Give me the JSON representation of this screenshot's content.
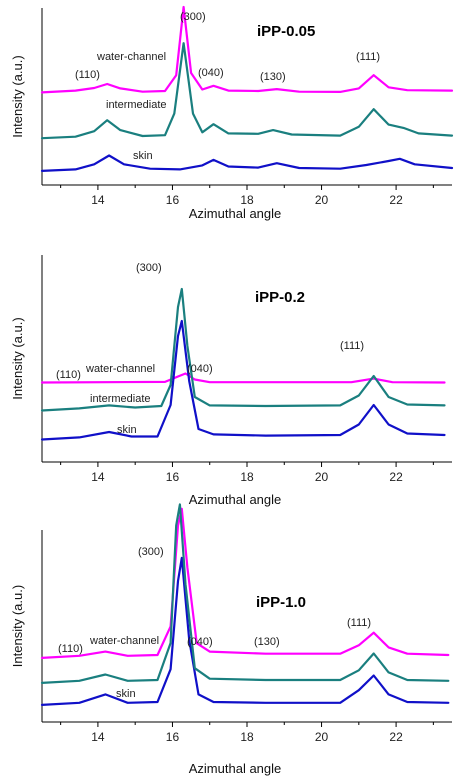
{
  "colors": {
    "water-channel": "#ff00ff",
    "intermediate": "#1a7f7f",
    "skin": "#1010c8"
  },
  "chart_data": [
    {
      "type": "line",
      "title": "iPP-0.05",
      "xlabel": "Azimuthal angle",
      "ylabel": "Intensity (a.u.)",
      "xlim": [
        12.5,
        23.5
      ],
      "xticks": [
        14,
        16,
        18,
        20,
        22
      ],
      "yticks_shown": false,
      "series": [
        {
          "name": "water-channel",
          "points": [
            [
              12.5,
              0.12
            ],
            [
              13.4,
              0.2
            ],
            [
              13.9,
              0.32
            ],
            [
              14.25,
              0.5
            ],
            [
              14.6,
              0.3
            ],
            [
              15.2,
              0.15
            ],
            [
              15.8,
              0.18
            ],
            [
              16.1,
              0.9
            ],
            [
              16.3,
              4.0
            ],
            [
              16.5,
              1.0
            ],
            [
              16.8,
              0.25
            ],
            [
              17.1,
              0.42
            ],
            [
              17.5,
              0.2
            ],
            [
              18.3,
              0.18
            ],
            [
              18.8,
              0.27
            ],
            [
              19.4,
              0.15
            ],
            [
              20.5,
              0.14
            ],
            [
              21.0,
              0.3
            ],
            [
              21.4,
              0.9
            ],
            [
              21.8,
              0.35
            ],
            [
              22.3,
              0.22
            ],
            [
              23.5,
              0.2
            ]
          ]
        },
        {
          "name": "intermediate",
          "points": [
            [
              12.5,
              0.08
            ],
            [
              13.4,
              0.15
            ],
            [
              13.9,
              0.4
            ],
            [
              14.25,
              0.9
            ],
            [
              14.6,
              0.45
            ],
            [
              15.2,
              0.18
            ],
            [
              15.8,
              0.22
            ],
            [
              16.05,
              1.2
            ],
            [
              16.3,
              4.4
            ],
            [
              16.55,
              1.2
            ],
            [
              16.8,
              0.35
            ],
            [
              17.1,
              0.72
            ],
            [
              17.5,
              0.3
            ],
            [
              18.3,
              0.28
            ],
            [
              18.7,
              0.45
            ],
            [
              19.2,
              0.25
            ],
            [
              20.5,
              0.2
            ],
            [
              21.0,
              0.6
            ],
            [
              21.4,
              1.4
            ],
            [
              21.8,
              0.7
            ],
            [
              22.2,
              0.55
            ],
            [
              22.6,
              0.3
            ],
            [
              23.5,
              0.2
            ]
          ]
        },
        {
          "name": "skin",
          "points": [
            [
              12.5,
              0.05
            ],
            [
              13.4,
              0.12
            ],
            [
              13.9,
              0.35
            ],
            [
              14.3,
              0.75
            ],
            [
              14.7,
              0.35
            ],
            [
              15.4,
              0.15
            ],
            [
              16.2,
              0.12
            ],
            [
              16.8,
              0.3
            ],
            [
              17.1,
              0.55
            ],
            [
              17.5,
              0.25
            ],
            [
              18.3,
              0.2
            ],
            [
              18.8,
              0.4
            ],
            [
              19.4,
              0.18
            ],
            [
              20.5,
              0.15
            ],
            [
              21.2,
              0.32
            ],
            [
              21.8,
              0.5
            ],
            [
              22.1,
              0.6
            ],
            [
              22.5,
              0.35
            ],
            [
              23.5,
              0.18
            ]
          ]
        }
      ],
      "annotations": [
        "(300)",
        "(110)",
        "water-channel",
        "(040)",
        "(130)",
        "(111)",
        "intermediate",
        "skin"
      ]
    },
    {
      "type": "line",
      "title": "iPP-0.2",
      "xlabel": "Azimuthal angle",
      "ylabel": "Intensity (a.u.)",
      "xlim": [
        12.5,
        23.5
      ],
      "xticks": [
        14,
        16,
        18,
        20,
        22
      ],
      "yticks_shown": false,
      "series": [
        {
          "name": "water-channel",
          "points": [
            [
              12.5,
              0.05
            ],
            [
              15.8,
              0.07
            ],
            [
              16.15,
              0.25
            ],
            [
              16.35,
              0.35
            ],
            [
              16.6,
              0.15
            ],
            [
              17.0,
              0.06
            ],
            [
              20.8,
              0.06
            ],
            [
              21.4,
              0.18
            ],
            [
              21.9,
              0.06
            ],
            [
              23.3,
              0.05
            ]
          ]
        },
        {
          "name": "intermediate",
          "points": [
            [
              12.5,
              0.05
            ],
            [
              13.5,
              0.12
            ],
            [
              14.3,
              0.22
            ],
            [
              15.0,
              0.15
            ],
            [
              15.7,
              0.2
            ],
            [
              15.95,
              0.9
            ],
            [
              16.15,
              3.5
            ],
            [
              16.25,
              4.1
            ],
            [
              16.4,
              2.2
            ],
            [
              16.6,
              0.5
            ],
            [
              17.0,
              0.22
            ],
            [
              18.5,
              0.2
            ],
            [
              20.5,
              0.22
            ],
            [
              21.0,
              0.55
            ],
            [
              21.4,
              1.2
            ],
            [
              21.8,
              0.5
            ],
            [
              22.3,
              0.25
            ],
            [
              23.3,
              0.22
            ]
          ]
        },
        {
          "name": "skin",
          "points": [
            [
              12.5,
              0.05
            ],
            [
              13.5,
              0.12
            ],
            [
              14.3,
              0.3
            ],
            [
              14.9,
              0.15
            ],
            [
              15.6,
              0.15
            ],
            [
              15.95,
              1.2
            ],
            [
              16.15,
              3.5
            ],
            [
              16.25,
              4.0
            ],
            [
              16.45,
              2.0
            ],
            [
              16.7,
              0.4
            ],
            [
              17.1,
              0.22
            ],
            [
              18.5,
              0.18
            ],
            [
              20.5,
              0.2
            ],
            [
              21.0,
              0.55
            ],
            [
              21.4,
              1.2
            ],
            [
              21.8,
              0.55
            ],
            [
              22.3,
              0.25
            ],
            [
              23.3,
              0.2
            ]
          ]
        }
      ],
      "annotations": [
        "(300)",
        "(110)",
        "water-channel",
        "(040)",
        "(111)",
        "intermediate",
        "skin"
      ]
    },
    {
      "type": "line",
      "title": "iPP-1.0",
      "xlabel": "Azimuthal angle",
      "ylabel": "Intensity (a.u.)",
      "xlim": [
        12.5,
        23.5
      ],
      "xticks": [
        14,
        16,
        18,
        20,
        22
      ],
      "yticks_shown": false,
      "series": [
        {
          "name": "water-channel",
          "points": [
            [
              12.5,
              0.05
            ],
            [
              13.5,
              0.1
            ],
            [
              14.2,
              0.2
            ],
            [
              14.8,
              0.1
            ],
            [
              15.6,
              0.12
            ],
            [
              15.95,
              0.8
            ],
            [
              16.15,
              3.2
            ],
            [
              16.25,
              3.6
            ],
            [
              16.4,
              2.2
            ],
            [
              16.65,
              0.4
            ],
            [
              17.0,
              0.2
            ],
            [
              18.5,
              0.15
            ],
            [
              20.5,
              0.15
            ],
            [
              21.0,
              0.35
            ],
            [
              21.4,
              0.65
            ],
            [
              21.8,
              0.3
            ],
            [
              22.3,
              0.15
            ],
            [
              23.4,
              0.12
            ]
          ]
        },
        {
          "name": "intermediate",
          "points": [
            [
              12.5,
              0.05
            ],
            [
              13.5,
              0.1
            ],
            [
              14.2,
              0.25
            ],
            [
              14.8,
              0.1
            ],
            [
              15.6,
              0.12
            ],
            [
              15.95,
              1.0
            ],
            [
              16.1,
              3.8
            ],
            [
              16.2,
              4.3
            ],
            [
              16.35,
              2.4
            ],
            [
              16.6,
              0.4
            ],
            [
              17.0,
              0.15
            ],
            [
              18.5,
              0.12
            ],
            [
              20.5,
              0.12
            ],
            [
              21.0,
              0.35
            ],
            [
              21.4,
              0.75
            ],
            [
              21.8,
              0.3
            ],
            [
              22.3,
              0.12
            ],
            [
              23.4,
              0.1
            ]
          ]
        },
        {
          "name": "skin",
          "points": [
            [
              12.5,
              0.05
            ],
            [
              13.5,
              0.1
            ],
            [
              14.2,
              0.3
            ],
            [
              14.8,
              0.1
            ],
            [
              15.6,
              0.12
            ],
            [
              15.95,
              0.9
            ],
            [
              16.15,
              3.0
            ],
            [
              16.25,
              3.55
            ],
            [
              16.45,
              1.6
            ],
            [
              16.7,
              0.3
            ],
            [
              17.1,
              0.12
            ],
            [
              18.5,
              0.1
            ],
            [
              20.5,
              0.1
            ],
            [
              21.0,
              0.4
            ],
            [
              21.4,
              0.75
            ],
            [
              21.8,
              0.3
            ],
            [
              22.3,
              0.12
            ],
            [
              23.4,
              0.1
            ]
          ]
        }
      ],
      "annotations": [
        "(300)",
        "(110)",
        "water-channel",
        "(040)",
        "(130)",
        "(111)",
        "skin"
      ]
    }
  ]
}
